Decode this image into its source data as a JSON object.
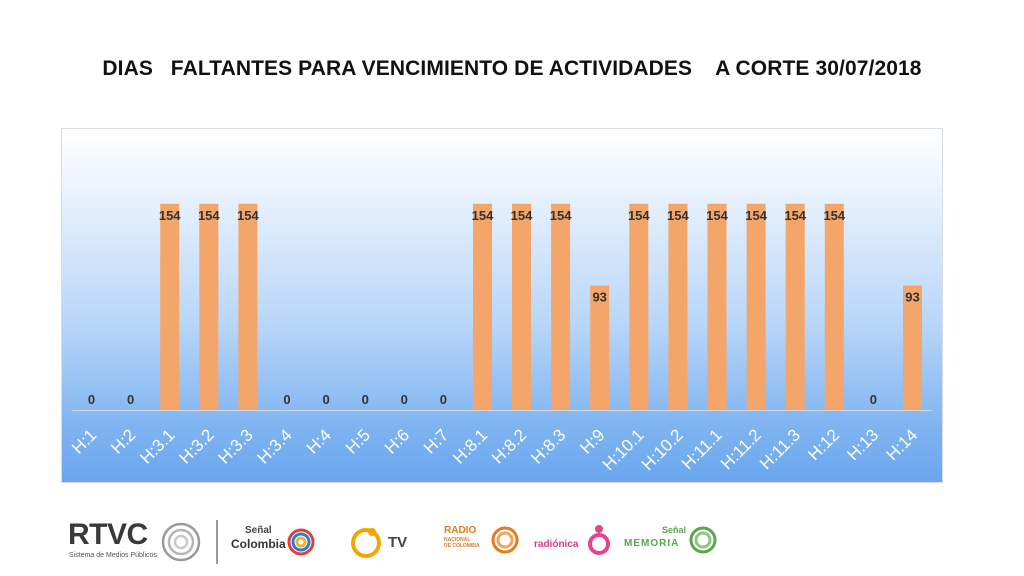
{
  "title": "DIAS   FALTANTES PARA VENCIMIENTO DE ACTIVIDADES    A CORTE 30/07/2018",
  "colors": {
    "bar": "#f4a56a",
    "label": "#333333",
    "axis": "#d0d7e2"
  },
  "chart_data": {
    "type": "bar",
    "title": "DIAS   FALTANTES PARA VENCIMIENTO DE ACTIVIDADES    A CORTE 30/07/2018",
    "xlabel": "",
    "ylabel": "",
    "ylim": [
      0,
      180
    ],
    "grid": false,
    "categories": [
      "H:1",
      "H:2",
      "H:3.1",
      "H:3.2",
      "H:3.3",
      "H:3.4",
      "H:4",
      "H:5",
      "H:6",
      "H:7",
      "H:8.1",
      "H:8.2",
      "H:8.3",
      "H:9",
      "H:10.1",
      "H:10.2",
      "H:11.1",
      "H:11.2",
      "H:11.3",
      "H:12",
      "H:13",
      "H:14"
    ],
    "values": [
      0,
      0,
      154,
      154,
      154,
      0,
      0,
      0,
      0,
      0,
      154,
      154,
      154,
      93,
      154,
      154,
      154,
      154,
      154,
      154,
      0,
      93
    ]
  },
  "footer": {
    "rtvc": {
      "name": "RTVC",
      "tagline": "Sistema de Medios Públicos"
    },
    "senal_colombia": {
      "line1": "Señal",
      "line2": "Colombia"
    },
    "canal_tv": {
      "text": "TV"
    },
    "radio_nacional": {
      "line1": "RADIO",
      "line2": "NACIONAL",
      "line3": "DE COLOMBIA"
    },
    "radionica": {
      "text": "radiónica"
    },
    "senal_memoria": {
      "line1": "Señal",
      "line2": "MEMORIA"
    }
  }
}
